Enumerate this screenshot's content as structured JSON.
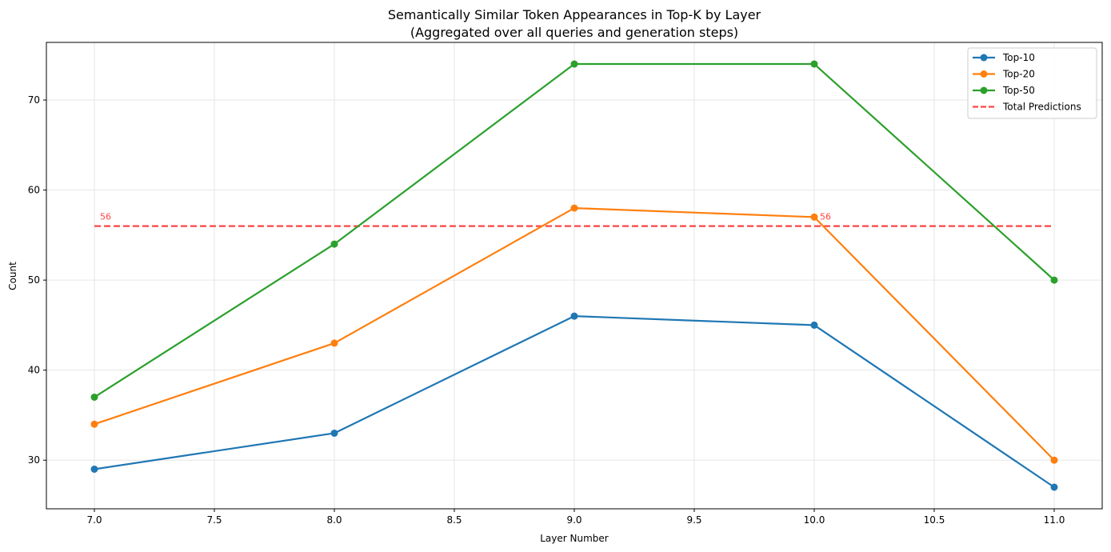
{
  "chart_data": {
    "type": "line",
    "title": "Semantically Similar Token Appearances in Top-K by Layer",
    "subtitle": "(Aggregated over all queries and generation steps)",
    "xlabel": "Layer Number",
    "ylabel": "Count",
    "xlim": [
      6.8,
      11.2
    ],
    "ylim": [
      24.6,
      76.4
    ],
    "xticks": [
      "7.0",
      "7.5",
      "8.0",
      "8.5",
      "9.0",
      "9.5",
      "10.0",
      "10.5",
      "11.0"
    ],
    "yticks": [
      "30",
      "40",
      "50",
      "60",
      "70"
    ],
    "grid": true,
    "legend_position": "top-right",
    "x": [
      7,
      8,
      9,
      10,
      11
    ],
    "series": [
      {
        "name": "Top-10",
        "color": "#1f77b4",
        "values": [
          29,
          33,
          46,
          45,
          27
        ]
      },
      {
        "name": "Top-20",
        "color": "#ff7f0e",
        "values": [
          34,
          43,
          58,
          57,
          30
        ]
      },
      {
        "name": "Top-50",
        "color": "#2ca02c",
        "values": [
          37,
          54,
          74,
          74,
          50
        ]
      }
    ],
    "reference_line": {
      "name": "Total Predictions",
      "color": "#ff4444",
      "value": 56,
      "x_range": [
        7,
        11
      ],
      "style": "dashed"
    },
    "annotations": [
      {
        "text": "56",
        "x": 7,
        "y": 56,
        "color": "#ff4444"
      },
      {
        "text": "56",
        "x": 10,
        "y": 56,
        "color": "#ff4444"
      }
    ]
  }
}
